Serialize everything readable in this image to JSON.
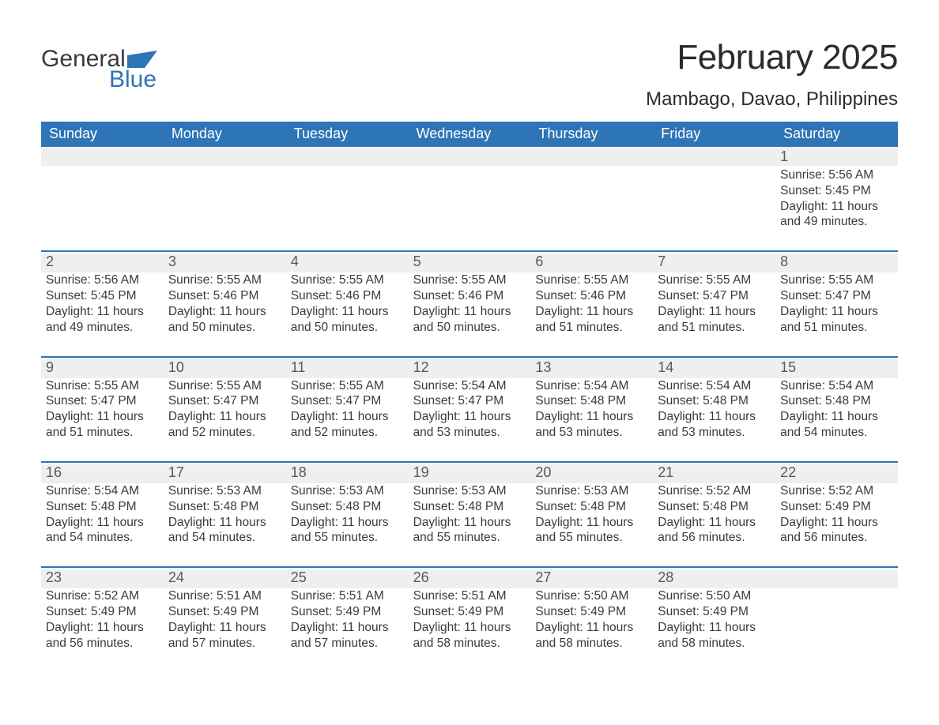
{
  "brand": {
    "word1": "General",
    "word2": "Blue"
  },
  "title": "February 2025",
  "subtitle": "Mambago, Davao, Philippines",
  "colors": {
    "header_bg": "#2e75b6",
    "rule": "#2e75b6",
    "daynum_bg": "#efefef",
    "page_bg": "#ffffff",
    "text": "#3a3a3a"
  },
  "typography": {
    "title_fontsize_pt": 33,
    "subtitle_fontsize_pt": 18,
    "dow_fontsize_pt": 14,
    "body_fontsize_pt": 12
  },
  "layout": {
    "columns": 7,
    "rows": 5,
    "first_day_column_index": 6
  },
  "days_of_week": [
    "Sunday",
    "Monday",
    "Tuesday",
    "Wednesday",
    "Thursday",
    "Friday",
    "Saturday"
  ],
  "days": [
    {
      "n": 1,
      "sunrise": "5:56 AM",
      "sunset": "5:45 PM",
      "daylight": "11 hours and 49 minutes."
    },
    {
      "n": 2,
      "sunrise": "5:56 AM",
      "sunset": "5:45 PM",
      "daylight": "11 hours and 49 minutes."
    },
    {
      "n": 3,
      "sunrise": "5:55 AM",
      "sunset": "5:46 PM",
      "daylight": "11 hours and 50 minutes."
    },
    {
      "n": 4,
      "sunrise": "5:55 AM",
      "sunset": "5:46 PM",
      "daylight": "11 hours and 50 minutes."
    },
    {
      "n": 5,
      "sunrise": "5:55 AM",
      "sunset": "5:46 PM",
      "daylight": "11 hours and 50 minutes."
    },
    {
      "n": 6,
      "sunrise": "5:55 AM",
      "sunset": "5:46 PM",
      "daylight": "11 hours and 51 minutes."
    },
    {
      "n": 7,
      "sunrise": "5:55 AM",
      "sunset": "5:47 PM",
      "daylight": "11 hours and 51 minutes."
    },
    {
      "n": 8,
      "sunrise": "5:55 AM",
      "sunset": "5:47 PM",
      "daylight": "11 hours and 51 minutes."
    },
    {
      "n": 9,
      "sunrise": "5:55 AM",
      "sunset": "5:47 PM",
      "daylight": "11 hours and 51 minutes."
    },
    {
      "n": 10,
      "sunrise": "5:55 AM",
      "sunset": "5:47 PM",
      "daylight": "11 hours and 52 minutes."
    },
    {
      "n": 11,
      "sunrise": "5:55 AM",
      "sunset": "5:47 PM",
      "daylight": "11 hours and 52 minutes."
    },
    {
      "n": 12,
      "sunrise": "5:54 AM",
      "sunset": "5:47 PM",
      "daylight": "11 hours and 53 minutes."
    },
    {
      "n": 13,
      "sunrise": "5:54 AM",
      "sunset": "5:48 PM",
      "daylight": "11 hours and 53 minutes."
    },
    {
      "n": 14,
      "sunrise": "5:54 AM",
      "sunset": "5:48 PM",
      "daylight": "11 hours and 53 minutes."
    },
    {
      "n": 15,
      "sunrise": "5:54 AM",
      "sunset": "5:48 PM",
      "daylight": "11 hours and 54 minutes."
    },
    {
      "n": 16,
      "sunrise": "5:54 AM",
      "sunset": "5:48 PM",
      "daylight": "11 hours and 54 minutes."
    },
    {
      "n": 17,
      "sunrise": "5:53 AM",
      "sunset": "5:48 PM",
      "daylight": "11 hours and 54 minutes."
    },
    {
      "n": 18,
      "sunrise": "5:53 AM",
      "sunset": "5:48 PM",
      "daylight": "11 hours and 55 minutes."
    },
    {
      "n": 19,
      "sunrise": "5:53 AM",
      "sunset": "5:48 PM",
      "daylight": "11 hours and 55 minutes."
    },
    {
      "n": 20,
      "sunrise": "5:53 AM",
      "sunset": "5:48 PM",
      "daylight": "11 hours and 55 minutes."
    },
    {
      "n": 21,
      "sunrise": "5:52 AM",
      "sunset": "5:48 PM",
      "daylight": "11 hours and 56 minutes."
    },
    {
      "n": 22,
      "sunrise": "5:52 AM",
      "sunset": "5:49 PM",
      "daylight": "11 hours and 56 minutes."
    },
    {
      "n": 23,
      "sunrise": "5:52 AM",
      "sunset": "5:49 PM",
      "daylight": "11 hours and 56 minutes."
    },
    {
      "n": 24,
      "sunrise": "5:51 AM",
      "sunset": "5:49 PM",
      "daylight": "11 hours and 57 minutes."
    },
    {
      "n": 25,
      "sunrise": "5:51 AM",
      "sunset": "5:49 PM",
      "daylight": "11 hours and 57 minutes."
    },
    {
      "n": 26,
      "sunrise": "5:51 AM",
      "sunset": "5:49 PM",
      "daylight": "11 hours and 58 minutes."
    },
    {
      "n": 27,
      "sunrise": "5:50 AM",
      "sunset": "5:49 PM",
      "daylight": "11 hours and 58 minutes."
    },
    {
      "n": 28,
      "sunrise": "5:50 AM",
      "sunset": "5:49 PM",
      "daylight": "11 hours and 58 minutes."
    }
  ],
  "labels": {
    "sunrise": "Sunrise",
    "sunset": "Sunset",
    "daylight": "Daylight"
  }
}
